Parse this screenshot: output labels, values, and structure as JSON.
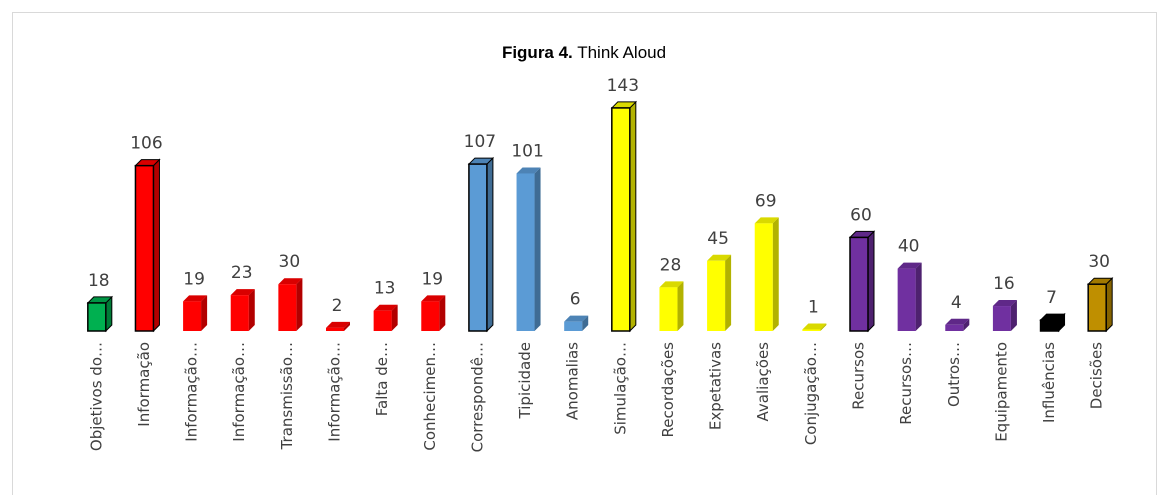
{
  "chart_data": {
    "type": "bar3d",
    "title": [
      "Figura 4.",
      "Think Aloud"
    ],
    "categories": [
      "Objetivos do…",
      "Informação",
      "Informação…",
      "Informação…",
      "Transmissão…",
      "Informação…",
      "Falta de…",
      "Conhecimen…",
      "Correspondê…",
      "Tipicidade",
      "Anomalias",
      "Simulação…",
      "Recordações",
      "Expetativas",
      "Avaliações",
      "Conjugação…",
      "Recursos",
      "Recursos…",
      "Outros…",
      "Equipamento",
      "Influências",
      "Decisões"
    ],
    "values": [
      18,
      106,
      19,
      23,
      30,
      2,
      13,
      19,
      107,
      101,
      6,
      143,
      28,
      45,
      69,
      1,
      60,
      40,
      4,
      16,
      7,
      30
    ],
    "colors": [
      "#00b050",
      "#ff0000",
      "#ff0000",
      "#ff0000",
      "#ff0000",
      "#ff0000",
      "#ff0000",
      "#ff0000",
      "#5b9bd5",
      "#5b9bd5",
      "#5b9bd5",
      "#ffff00",
      "#ffff00",
      "#ffff00",
      "#ffff00",
      "#ffff00",
      "#7030a0",
      "#7030a0",
      "#7030a0",
      "#7030a0",
      "#000000",
      "#bf8f00"
    ],
    "outlined": [
      true,
      true,
      false,
      false,
      false,
      false,
      false,
      false,
      true,
      false,
      false,
      true,
      false,
      false,
      false,
      false,
      true,
      false,
      false,
      false,
      true,
      true
    ],
    "ylim": [
      0,
      150
    ]
  }
}
